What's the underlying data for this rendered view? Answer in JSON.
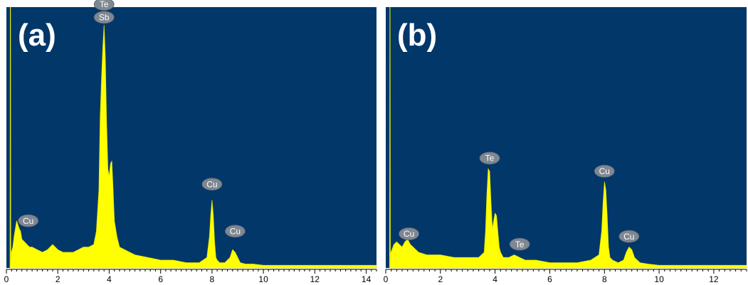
{
  "colors": {
    "plot_background": "#02376a",
    "spectrum_fill": "#ffff00",
    "spectrum_stroke": "#e8e800",
    "peak_label_background": "#7f8792",
    "peak_label_text": "#ffffff",
    "panel_label": "#ffffff",
    "axis": "#000000"
  },
  "chart_data": [
    {
      "type": "area",
      "panel_label": "(a)",
      "title": "",
      "xlabel": "",
      "ylabel": "",
      "xlim": [
        0,
        14.4
      ],
      "ylim": [
        0,
        100
      ],
      "xticks": [
        0,
        2,
        4,
        6,
        8,
        10,
        12,
        14
      ],
      "grid": false,
      "series": [
        {
          "x": [
            0.14,
            0.15,
            0.16,
            0.17,
            0.19,
            0.25,
            0.3,
            0.4,
            0.5,
            0.55,
            0.6,
            0.7,
            0.8,
            0.9,
            1.0,
            1.2,
            1.4,
            1.6,
            1.8,
            2.0,
            2.2,
            2.4,
            2.6,
            2.8,
            3.0,
            3.2,
            3.4,
            3.5,
            3.6,
            3.65,
            3.7,
            3.75,
            3.8,
            3.85,
            3.9,
            3.95,
            4.0,
            4.05,
            4.1,
            4.15,
            4.2,
            4.3,
            4.4,
            4.6,
            4.8,
            5.0,
            5.5,
            6.0,
            6.5,
            7.0,
            7.5,
            7.8,
            7.9,
            7.95,
            8.0,
            8.05,
            8.1,
            8.15,
            8.2,
            8.3,
            8.5,
            8.7,
            8.8,
            8.9,
            9.0,
            9.1,
            9.3,
            9.6,
            10.0,
            11.0,
            12.0,
            13.0,
            14.0,
            14.4
          ],
          "y": [
            2,
            100,
            100,
            2,
            6,
            8,
            12,
            18,
            15,
            14,
            11,
            10,
            9,
            8,
            8,
            7,
            6,
            7,
            9,
            7,
            6,
            6,
            6,
            7,
            8,
            8,
            9,
            14,
            30,
            58,
            72,
            84,
            93,
            80,
            55,
            38,
            35,
            40,
            41,
            30,
            18,
            12,
            8,
            7,
            6,
            5,
            4,
            3,
            3,
            2,
            2,
            4,
            12,
            20,
            26,
            20,
            10,
            4,
            3,
            2,
            2,
            4,
            7,
            6,
            4,
            2,
            1.5,
            1.5,
            1,
            1,
            1,
            1,
            1,
            1
          ]
        }
      ],
      "peak_labels": [
        {
          "text": "Te",
          "x": 3.8,
          "y": 100
        },
        {
          "text": "Sb",
          "x": 3.8,
          "y": 95
        },
        {
          "text": "Cu",
          "x": 0.85,
          "y": 17
        },
        {
          "text": "Cu",
          "x": 8.0,
          "y": 31
        },
        {
          "text": "Cu",
          "x": 8.9,
          "y": 13
        }
      ]
    },
    {
      "type": "area",
      "panel_label": "(b)",
      "title": "",
      "xlabel": "",
      "ylabel": "",
      "xlim": [
        0,
        13.2
      ],
      "ylim": [
        0,
        100
      ],
      "xticks": [
        0,
        2,
        4,
        6,
        8,
        10,
        12
      ],
      "grid": false,
      "series": [
        {
          "x": [
            0.14,
            0.15,
            0.16,
            0.17,
            0.19,
            0.3,
            0.4,
            0.5,
            0.6,
            0.7,
            0.8,
            0.9,
            1.0,
            1.2,
            1.5,
            2.0,
            2.5,
            3.0,
            3.4,
            3.6,
            3.65,
            3.7,
            3.75,
            3.8,
            3.85,
            3.9,
            3.95,
            4.0,
            4.05,
            4.1,
            4.15,
            4.2,
            4.3,
            4.5,
            4.7,
            4.9,
            5.1,
            5.5,
            6.0,
            6.5,
            7.0,
            7.5,
            7.8,
            7.9,
            7.95,
            8.0,
            8.05,
            8.1,
            8.15,
            8.2,
            8.3,
            8.5,
            8.7,
            8.8,
            8.9,
            9.0,
            9.1,
            9.3,
            9.6,
            10.0,
            11.0,
            12.0,
            13.0,
            13.2
          ],
          "y": [
            2,
            100,
            100,
            2,
            6,
            9,
            10,
            9,
            8,
            10,
            11,
            9,
            8,
            6,
            5,
            5,
            4,
            4,
            4,
            6,
            14,
            28,
            38,
            37,
            25,
            15,
            18,
            21,
            20,
            14,
            8,
            6,
            4,
            4,
            5,
            4,
            3,
            3,
            2,
            2,
            2,
            3,
            5,
            14,
            25,
            33,
            30,
            20,
            8,
            4,
            3,
            2,
            3,
            6,
            8,
            7,
            4,
            2,
            1.5,
            1,
            1,
            1,
            1,
            1
          ]
        }
      ],
      "peak_labels": [
        {
          "text": "Te",
          "x": 3.8,
          "y": 41
        },
        {
          "text": "Cu",
          "x": 0.85,
          "y": 12
        },
        {
          "text": "Te",
          "x": 4.9,
          "y": 8
        },
        {
          "text": "Cu",
          "x": 8.0,
          "y": 36
        },
        {
          "text": "Cu",
          "x": 8.9,
          "y": 11
        }
      ]
    }
  ]
}
